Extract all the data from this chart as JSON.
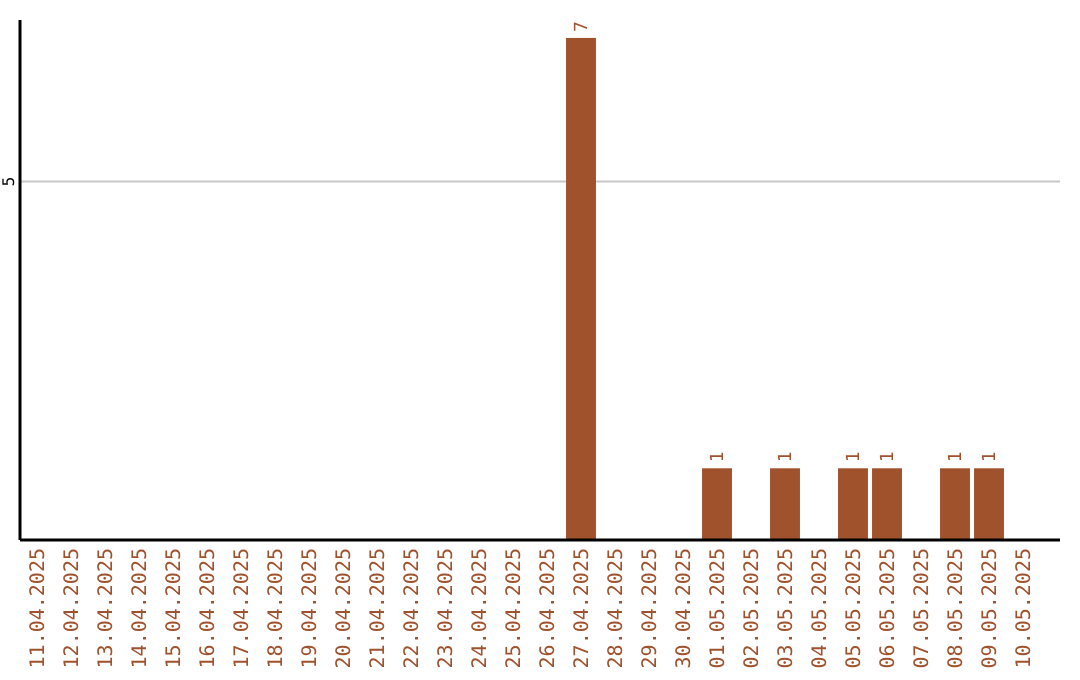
{
  "chart_data": {
    "type": "bar",
    "categories": [
      "11.04.2025",
      "12.04.2025",
      "13.04.2025",
      "14.04.2025",
      "15.04.2025",
      "16.04.2025",
      "17.04.2025",
      "18.04.2025",
      "19.04.2025",
      "20.04.2025",
      "21.04.2025",
      "22.04.2025",
      "23.04.2025",
      "24.04.2025",
      "25.04.2025",
      "26.04.2025",
      "27.04.2025",
      "28.04.2025",
      "29.04.2025",
      "30.04.2025",
      "01.05.2025",
      "02.05.2025",
      "03.05.2025",
      "04.05.2025",
      "05.05.2025",
      "06.05.2025",
      "07.05.2025",
      "08.05.2025",
      "09.05.2025",
      "10.05.2025"
    ],
    "values": [
      null,
      null,
      null,
      null,
      null,
      null,
      null,
      null,
      null,
      null,
      null,
      null,
      null,
      null,
      null,
      null,
      7,
      null,
      null,
      null,
      1,
      null,
      1,
      null,
      1,
      1,
      null,
      1,
      1,
      null
    ],
    "data_labels": true,
    "color": "#a0522d",
    "ylim": [
      0,
      7.25
    ],
    "ref_lines": [
      {
        "axis": "y",
        "value": 5,
        "label": "5",
        "color": "#c8c8c8"
      }
    ]
  }
}
